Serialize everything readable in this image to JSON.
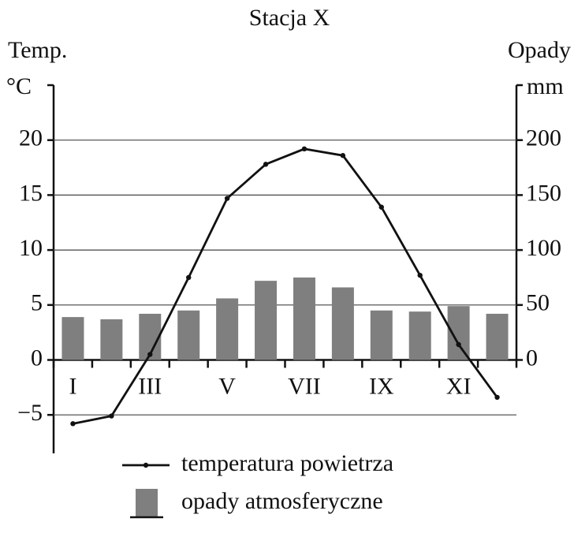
{
  "chart_data": {
    "type": "combo",
    "title": "Stacja X",
    "ylabel": "Temp.",
    "yunit": "°C",
    "y2label": "Opady",
    "y2unit": "mm",
    "categories": [
      "I",
      null,
      "III",
      null,
      "V",
      null,
      "VII",
      null,
      "IX",
      null,
      "XI",
      null
    ],
    "series": [
      {
        "name": "temperatura powietrza",
        "type": "line",
        "color": "#111111",
        "axis": "y",
        "values": [
          -5.8,
          -5.1,
          0.5,
          7.5,
          14.7,
          17.8,
          19.2,
          18.6,
          13.9,
          7.7,
          1.4,
          -3.4
        ]
      },
      {
        "name": "opady atmosferyczne",
        "type": "bar",
        "color": "#7f7f7f",
        "axis": "y2",
        "values": [
          39,
          37,
          42,
          45,
          56,
          72,
          75,
          66,
          45,
          44,
          49,
          42
        ]
      }
    ],
    "ylim": [
      -8.5,
      25
    ],
    "yticks": [
      {
        "value": -5,
        "label": "−5"
      },
      0,
      5,
      10,
      15,
      20
    ],
    "y2lim": [
      -85,
      250
    ],
    "y2ticks": [
      0,
      50,
      100,
      150,
      200
    ],
    "grid": true
  }
}
